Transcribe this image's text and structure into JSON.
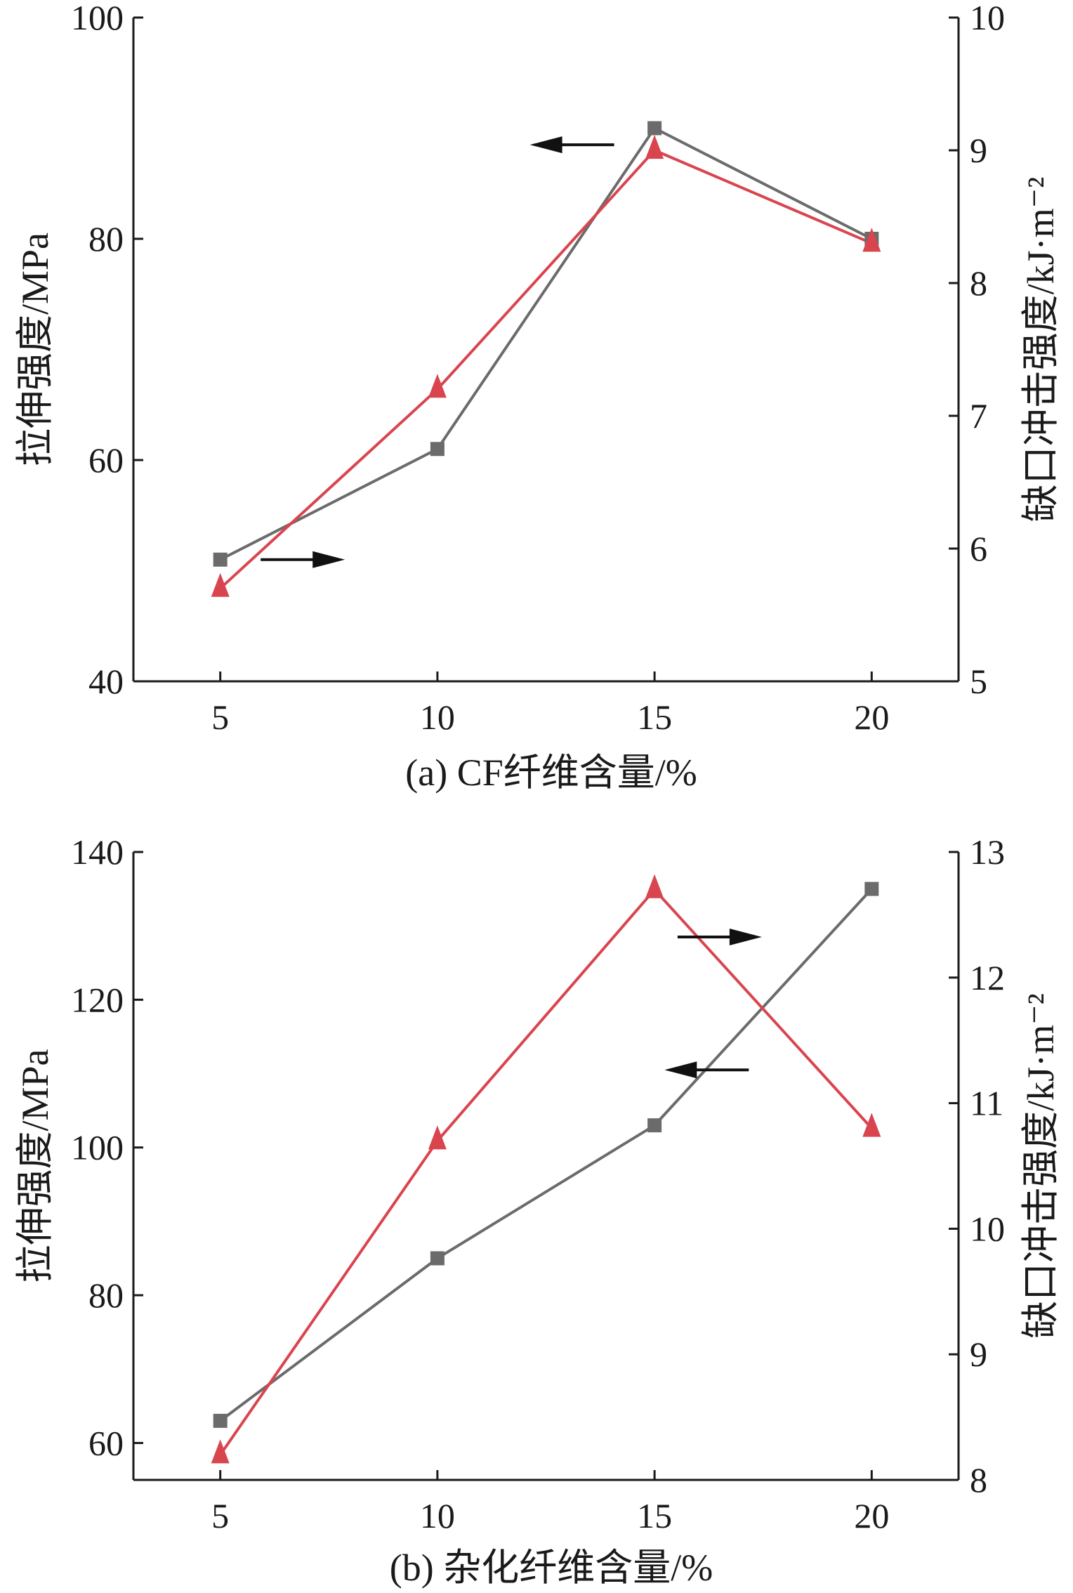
{
  "chart_data": [
    {
      "type": "line",
      "caption": "(a) CF纤维含量/%",
      "ylabel_left": "拉伸强度/MPa",
      "ylabel_right": "缺口冲击强度/kJ·m⁻²",
      "x_ticks": [
        "5",
        "10",
        "15",
        "20"
      ],
      "y_left_ticks": [
        "40",
        "60",
        "80",
        "100"
      ],
      "y_right_ticks": [
        "5",
        "6",
        "7",
        "8",
        "9",
        "10"
      ],
      "x": [
        5,
        10,
        15,
        20
      ],
      "xlim": [
        3,
        22
      ],
      "ylim_left": [
        40,
        100
      ],
      "ylim_right": [
        5,
        10
      ],
      "grid": false,
      "series": [
        {
          "marker": "square",
          "color": "#6b6b6b",
          "axis": "left",
          "values": [
            51,
            61,
            90,
            80
          ]
        },
        {
          "marker": "triangle",
          "color": "#d9454f",
          "axis": "right",
          "values": [
            5.7,
            7.2,
            9.0,
            8.3
          ]
        }
      ],
      "arrows": [
        {
          "direction": "right",
          "points_to": "right axis",
          "x": 6.9,
          "y_left": 51
        },
        {
          "direction": "left",
          "points_to": "left axis",
          "x": 13.1,
          "y_left": 88.5
        }
      ]
    },
    {
      "type": "line",
      "caption": "(b) 杂化纤维含量/%",
      "ylabel_left": "拉伸强度/MPa",
      "ylabel_right": "缺口冲击强度/kJ·m⁻²",
      "x_ticks": [
        "5",
        "10",
        "15",
        "20"
      ],
      "y_left_ticks": [
        "60",
        "80",
        "100",
        "120",
        "140"
      ],
      "y_right_ticks": [
        "8",
        "9",
        "10",
        "11",
        "12",
        "13"
      ],
      "x": [
        5,
        10,
        15,
        20
      ],
      "xlim": [
        3,
        22
      ],
      "ylim_left": [
        55,
        140
      ],
      "ylim_right": [
        8,
        13
      ],
      "grid": false,
      "series": [
        {
          "marker": "square",
          "color": "#6b6b6b",
          "axis": "left",
          "values": [
            63,
            85,
            103,
            135
          ]
        },
        {
          "marker": "triangle",
          "color": "#d9454f",
          "axis": "right",
          "values": [
            8.2,
            10.7,
            12.7,
            10.8
          ]
        }
      ],
      "arrows": [
        {
          "direction": "right",
          "points_to": "right axis",
          "x": 16.5,
          "y_left": 128.5
        },
        {
          "direction": "left",
          "points_to": "left axis",
          "x": 16.2,
          "y_left": 110.5
        }
      ]
    }
  ]
}
